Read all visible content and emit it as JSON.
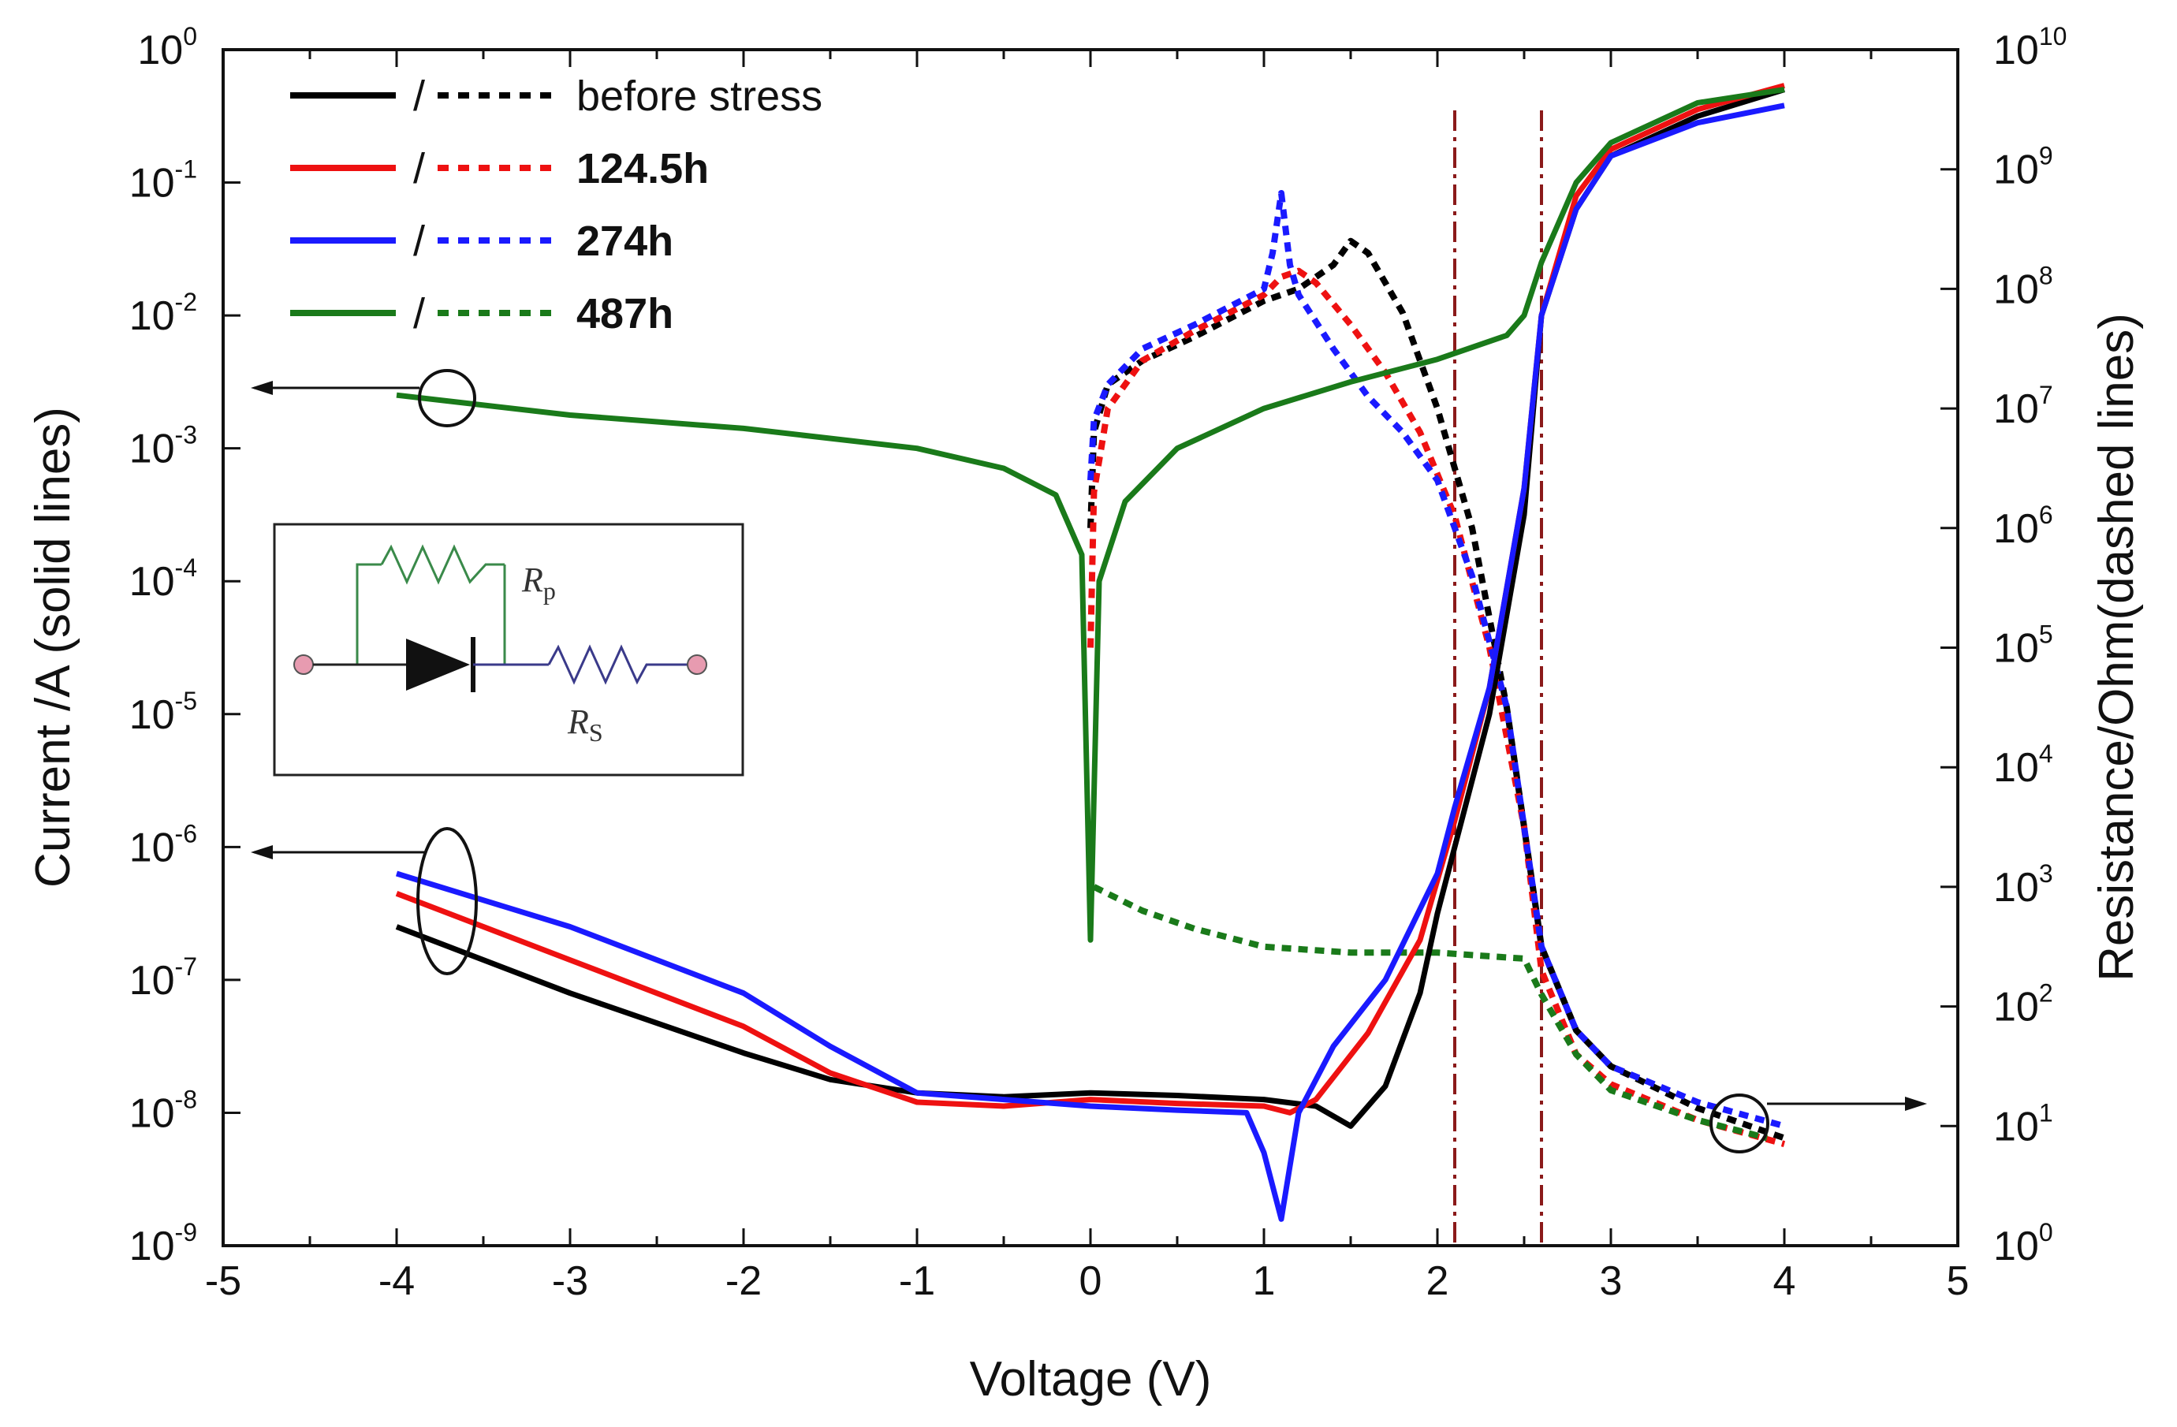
{
  "chart_data": {
    "type": "line",
    "xlabel": "Voltage (V)",
    "ylabel_left": "Current /A (solid lines)",
    "ylabel_right": "Resistance/Ohm(dashed lines)",
    "xlim": [
      -5,
      5
    ],
    "x_ticks": [
      "-5",
      "-4",
      "-3",
      "-2",
      "-1",
      "0",
      "1",
      "2",
      "3",
      "4",
      "5"
    ],
    "ylim_left_log10": [
      -9,
      0
    ],
    "y_ticks_left": [
      {
        "base": "10",
        "exp": "0"
      },
      {
        "base": "10",
        "exp": "-1"
      },
      {
        "base": "10",
        "exp": "-2"
      },
      {
        "base": "10",
        "exp": "-3"
      },
      {
        "base": "10",
        "exp": "-4"
      },
      {
        "base": "10",
        "exp": "-5"
      },
      {
        "base": "10",
        "exp": "-6"
      },
      {
        "base": "10",
        "exp": "-7"
      },
      {
        "base": "10",
        "exp": "-8"
      },
      {
        "base": "10",
        "exp": "-9"
      }
    ],
    "ylim_right_log10": [
      0,
      10
    ],
    "y_ticks_right": [
      {
        "base": "10",
        "exp": "10"
      },
      {
        "base": "10",
        "exp": "9"
      },
      {
        "base": "10",
        "exp": "8"
      },
      {
        "base": "10",
        "exp": "7"
      },
      {
        "base": "10",
        "exp": "6"
      },
      {
        "base": "10",
        "exp": "5"
      },
      {
        "base": "10",
        "exp": "4"
      },
      {
        "base": "10",
        "exp": "3"
      },
      {
        "base": "10",
        "exp": "2"
      },
      {
        "base": "10",
        "exp": "1"
      },
      {
        "base": "10",
        "exp": "0"
      }
    ],
    "legend": [
      {
        "slash": "/",
        "label": "before stress",
        "color": "#000000",
        "bold": false
      },
      {
        "slash": "/",
        "label": "124.5h",
        "color": "#ee1111",
        "bold": true
      },
      {
        "slash": "/",
        "label": "274h",
        "color": "#1a1aff",
        "bold": true
      },
      {
        "slash": "/",
        "label": "487h",
        "color": "#1a7a1a",
        "bold": true
      }
    ],
    "vlines_x": [
      2.1,
      2.6
    ],
    "vline_color": "#8b1a1a",
    "current_series": [
      {
        "name": "before stress",
        "color": "#000000",
        "style": "solid",
        "x": [
          -4,
          -3,
          -2,
          -1.5,
          -1,
          -0.5,
          0,
          0.5,
          1,
          1.3,
          1.5,
          1.7,
          1.9,
          2.0,
          2.1,
          2.3,
          2.5,
          2.6,
          2.8,
          3,
          3.5,
          4
        ],
        "log10y": [
          -6.6,
          -7.1,
          -7.55,
          -7.75,
          -7.85,
          -7.88,
          -7.85,
          -7.87,
          -7.9,
          -7.95,
          -8.1,
          -7.8,
          -7.1,
          -6.5,
          -6.0,
          -5.0,
          -3.5,
          -2.0,
          -1.2,
          -0.8,
          -0.5,
          -0.3
        ]
      },
      {
        "name": "124.5h",
        "color": "#ee1111",
        "style": "solid",
        "x": [
          -4,
          -3,
          -2,
          -1.5,
          -1,
          -0.5,
          0,
          0.5,
          1,
          1.15,
          1.3,
          1.6,
          1.9,
          2.1,
          2.3,
          2.5,
          2.6,
          2.8,
          3,
          3.5,
          4
        ],
        "log10y": [
          -6.35,
          -6.85,
          -7.35,
          -7.7,
          -7.92,
          -7.95,
          -7.9,
          -7.93,
          -7.95,
          -8.0,
          -7.9,
          -7.4,
          -6.7,
          -5.8,
          -4.8,
          -3.3,
          -2.0,
          -1.1,
          -0.75,
          -0.45,
          -0.27
        ]
      },
      {
        "name": "274h",
        "color": "#1a1aff",
        "style": "solid",
        "x": [
          -4,
          -3,
          -2,
          -1.5,
          -1,
          -0.5,
          0,
          0.5,
          0.9,
          1.0,
          1.1,
          1.2,
          1.4,
          1.7,
          2.0,
          2.1,
          2.3,
          2.5,
          2.6,
          2.8,
          3,
          3.5,
          4
        ],
        "log10y": [
          -6.2,
          -6.6,
          -7.1,
          -7.5,
          -7.85,
          -7.9,
          -7.95,
          -7.98,
          -8.0,
          -8.3,
          -8.8,
          -8.0,
          -7.5,
          -7.0,
          -6.2,
          -5.7,
          -4.8,
          -3.3,
          -2.0,
          -1.2,
          -0.8,
          -0.55,
          -0.42
        ]
      },
      {
        "name": "487h",
        "color": "#1a7a1a",
        "style": "solid",
        "x": [
          -4,
          -3,
          -2,
          -1,
          -0.5,
          -0.2,
          -0.05,
          0,
          0.05,
          0.2,
          0.5,
          1,
          1.5,
          2,
          2.4,
          2.5,
          2.6,
          2.8,
          3,
          3.5,
          4
        ],
        "log10y": [
          -2.6,
          -2.75,
          -2.85,
          -3.0,
          -3.15,
          -3.35,
          -3.8,
          -6.7,
          -4.0,
          -3.4,
          -3.0,
          -2.7,
          -2.5,
          -2.33,
          -2.15,
          -2.0,
          -1.6,
          -1.0,
          -0.7,
          -0.4,
          -0.3
        ]
      }
    ],
    "resistance_series": [
      {
        "name": "before stress",
        "color": "#000000",
        "style": "dashed",
        "x": [
          0,
          0.02,
          0.1,
          0.3,
          0.6,
          1.0,
          1.2,
          1.4,
          1.5,
          1.6,
          1.8,
          2.0,
          2.2,
          2.4,
          2.5,
          2.6,
          2.8,
          3.0,
          3.5,
          4
        ],
        "log10y": [
          6.0,
          6.8,
          7.2,
          7.4,
          7.6,
          7.9,
          8.0,
          8.2,
          8.4,
          8.3,
          7.8,
          7.0,
          6.0,
          4.5,
          3.5,
          2.5,
          1.8,
          1.5,
          1.15,
          0.9
        ]
      },
      {
        "name": "124.5h",
        "color": "#ee1111",
        "style": "dashed",
        "x": [
          0,
          0.02,
          0.1,
          0.3,
          0.6,
          1.0,
          1.1,
          1.2,
          1.3,
          1.5,
          1.7,
          1.9,
          2.1,
          2.3,
          2.5,
          2.6,
          2.8,
          3.0,
          3.5,
          4
        ],
        "log10y": [
          5.0,
          6.3,
          7.0,
          7.4,
          7.65,
          7.95,
          8.1,
          8.15,
          8.05,
          7.7,
          7.3,
          6.8,
          6.1,
          5.0,
          3.5,
          2.3,
          1.6,
          1.35,
          1.05,
          0.85
        ]
      },
      {
        "name": "274h",
        "color": "#1a1aff",
        "style": "dashed",
        "x": [
          0,
          0.02,
          0.1,
          0.3,
          0.6,
          1.0,
          1.05,
          1.1,
          1.15,
          1.2,
          1.4,
          1.6,
          1.8,
          2.0,
          2.2,
          2.4,
          2.5,
          2.6,
          2.8,
          3.0,
          3.5,
          4
        ],
        "log10y": [
          6.4,
          6.9,
          7.2,
          7.5,
          7.7,
          8.0,
          8.3,
          8.8,
          8.2,
          7.95,
          7.5,
          7.1,
          6.8,
          6.4,
          5.6,
          4.5,
          3.5,
          2.5,
          1.8,
          1.5,
          1.2,
          1.0
        ]
      },
      {
        "name": "487h",
        "color": "#1a7a1a",
        "style": "dashed",
        "x": [
          0.02,
          0.3,
          0.6,
          1.0,
          1.5,
          2.0,
          2.3,
          2.5,
          2.6,
          2.8,
          3.0,
          3.5,
          3.9
        ],
        "log10y": [
          3.0,
          2.8,
          2.65,
          2.5,
          2.45,
          2.45,
          2.42,
          2.4,
          2.1,
          1.6,
          1.3,
          1.05,
          0.9
        ]
      }
    ],
    "inset": {
      "label_rp_main": "R",
      "label_rp_sub": "p",
      "label_rs_main": "R",
      "label_rs_sub": "S"
    }
  }
}
